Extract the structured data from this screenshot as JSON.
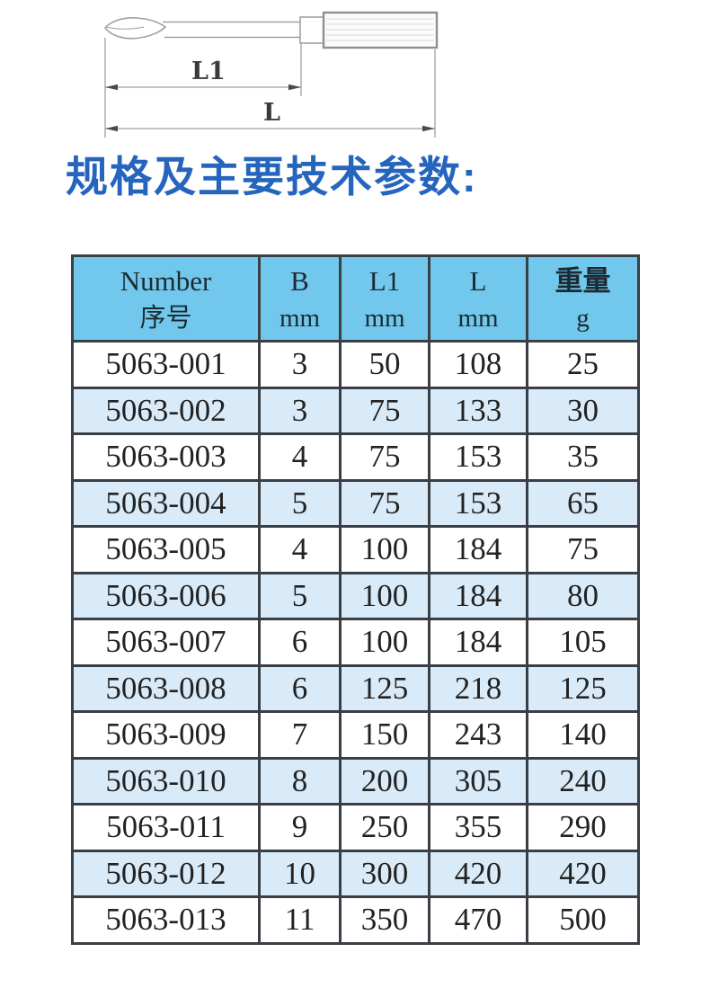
{
  "heading": "规格及主要技术参数:",
  "diagram": {
    "l1_label": "L1",
    "l_label": "L"
  },
  "table": {
    "columns": [
      {
        "line1": "Number",
        "line2": "序号"
      },
      {
        "line1": "B",
        "line2": "mm"
      },
      {
        "line1": "L1",
        "line2": "mm"
      },
      {
        "line1": "L",
        "line2": "mm"
      },
      {
        "line1": "重量",
        "line2": "g"
      }
    ],
    "rows": [
      [
        "5063-001",
        "3",
        "50",
        "108",
        "25"
      ],
      [
        "5063-002",
        "3",
        "75",
        "133",
        "30"
      ],
      [
        "5063-003",
        "4",
        "75",
        "153",
        "35"
      ],
      [
        "5063-004",
        "5",
        "75",
        "153",
        "65"
      ],
      [
        "5063-005",
        "4",
        "100",
        "184",
        "75"
      ],
      [
        "5063-006",
        "5",
        "100",
        "184",
        "80"
      ],
      [
        "5063-007",
        "6",
        "100",
        "184",
        "105"
      ],
      [
        "5063-008",
        "6",
        "125",
        "218",
        "125"
      ],
      [
        "5063-009",
        "7",
        "150",
        "243",
        "140"
      ],
      [
        "5063-010",
        "8",
        "200",
        "305",
        "240"
      ],
      [
        "5063-011",
        "9",
        "250",
        "355",
        "290"
      ],
      [
        "5063-012",
        "10",
        "300",
        "420",
        "420"
      ],
      [
        "5063-013",
        "11",
        "350",
        "470",
        "500"
      ]
    ]
  },
  "colors": {
    "heading_text": "#2665BD",
    "header_bg": "#71C8EC",
    "alt_row_bg": "#D9EBF8",
    "table_border": "#3A3E45",
    "header_text": "#1C2B33",
    "cell_text": "#222222",
    "diagram_line": "#9BA1A6"
  }
}
